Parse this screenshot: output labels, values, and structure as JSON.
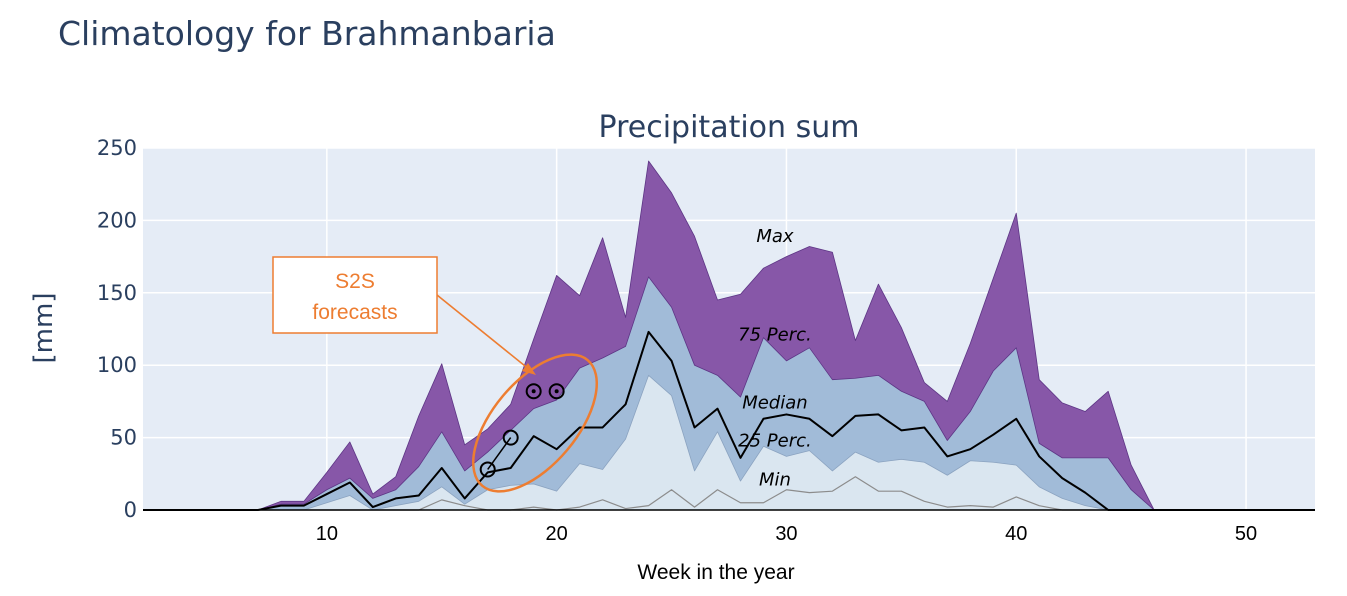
{
  "page": {
    "title": "Climatology for Brahmanbaria"
  },
  "chart_data": {
    "type": "area",
    "title": "Precipitation sum",
    "xlabel": "Week in the year",
    "ylabel": "[mm]",
    "xlim": [
      2,
      53
    ],
    "ylim": [
      0,
      250
    ],
    "xticks": [
      10,
      20,
      30,
      40,
      50
    ],
    "yticks": [
      0,
      50,
      100,
      150,
      200,
      250
    ],
    "grid": true,
    "x": [
      1,
      2,
      3,
      4,
      5,
      6,
      7,
      8,
      9,
      10,
      11,
      12,
      13,
      14,
      15,
      16,
      17,
      18,
      19,
      20,
      21,
      22,
      23,
      24,
      25,
      26,
      27,
      28,
      29,
      30,
      31,
      32,
      33,
      34,
      35,
      36,
      37,
      38,
      39,
      40,
      41,
      42,
      43,
      44,
      45,
      46,
      47,
      48,
      49,
      50,
      51,
      52,
      53
    ],
    "series": [
      {
        "name": "Max",
        "color": "#8757a8",
        "values": [
          0,
          0,
          0,
          0,
          0,
          0,
          0,
          6,
          6,
          26,
          47,
          11,
          23,
          65,
          101,
          45,
          56,
          73,
          118,
          162,
          148,
          188,
          133,
          241,
          219,
          189,
          145,
          149,
          167,
          175,
          182,
          178,
          117,
          156,
          126,
          88,
          75,
          115,
          160,
          205,
          90,
          74,
          68,
          82,
          31,
          0,
          0,
          0,
          0,
          0,
          0,
          0,
          0
        ]
      },
      {
        "name": "75 Perc.",
        "color": "#a1bbd8",
        "values": [
          0,
          0,
          0,
          0,
          0,
          0,
          0,
          4,
          4,
          14,
          22,
          8,
          14,
          30,
          54,
          27,
          40,
          55,
          70,
          76,
          98,
          105,
          113,
          161,
          140,
          100,
          93,
          78,
          119,
          103,
          112,
          90,
          91,
          93,
          82,
          75,
          48,
          68,
          96,
          112,
          46,
          36,
          36,
          36,
          14,
          0,
          0,
          0,
          0,
          0,
          0,
          0,
          0
        ]
      },
      {
        "name": "Median",
        "color": "#000000",
        "values": [
          0,
          0,
          0,
          0,
          0,
          0,
          0,
          3,
          3,
          11,
          19,
          2,
          8,
          10,
          29,
          8,
          26,
          29,
          51,
          42,
          57,
          57,
          73,
          123,
          103,
          57,
          70,
          36,
          63,
          66,
          63,
          51,
          65,
          66,
          55,
          57,
          37,
          42,
          52,
          63,
          37,
          22,
          12,
          0,
          0,
          0,
          0,
          0,
          0,
          0,
          0,
          0,
          0
        ]
      },
      {
        "name": "25 Perc.",
        "color": "#d6e2ee",
        "values": [
          0,
          0,
          0,
          0,
          0,
          0,
          0,
          0,
          0,
          5,
          10,
          0,
          3,
          6,
          16,
          4,
          14,
          17,
          18,
          13,
          32,
          28,
          49,
          93,
          79,
          27,
          54,
          20,
          44,
          37,
          41,
          27,
          40,
          33,
          35,
          33,
          24,
          34,
          33,
          31,
          16,
          8,
          3,
          0,
          0,
          0,
          0,
          0,
          0,
          0,
          0,
          0,
          0
        ]
      },
      {
        "name": "Min",
        "color": "#8c8c8c",
        "values": [
          0,
          0,
          0,
          0,
          0,
          0,
          0,
          0,
          0,
          0,
          0,
          0,
          0,
          0,
          7,
          3,
          0,
          0,
          2,
          0,
          2,
          7,
          1,
          3,
          14,
          2,
          14,
          5,
          5,
          14,
          12,
          13,
          23,
          13,
          13,
          6,
          2,
          3,
          2,
          9,
          3,
          0,
          0,
          0,
          0,
          0,
          0,
          0,
          0,
          0,
          0,
          0,
          0
        ]
      }
    ],
    "forecasts": {
      "x": [
        17,
        18,
        19,
        20
      ],
      "values": [
        28,
        50,
        82,
        82
      ],
      "label": "S2S\nforecasts"
    },
    "band_labels": [
      "Max",
      "75 Perc.",
      "Median",
      "25 Perc.",
      "Min"
    ]
  },
  "colors": {
    "plot_bg": "#e5ecf6",
    "grid": "#ffffff",
    "above_p75": "#8757a8",
    "p25_p75": "#a1bbd8",
    "below_p25": "#dae6f0",
    "annotation": "#ed7d31"
  }
}
